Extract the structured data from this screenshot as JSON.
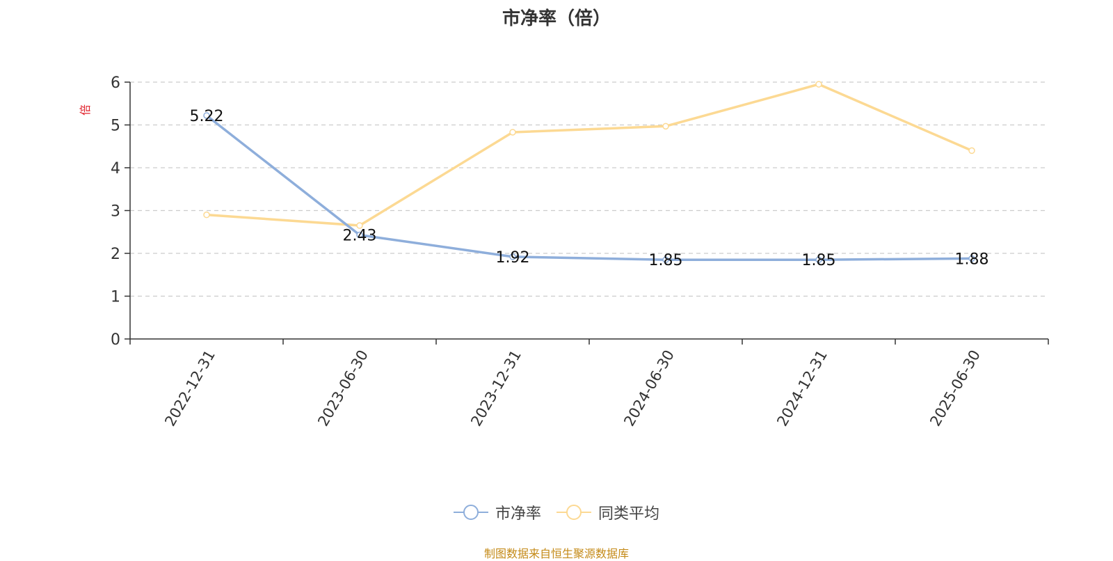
{
  "chart_data": {
    "type": "line",
    "title": "市净率（倍）",
    "ylabel": "倍",
    "xlabel": "",
    "x": [
      "2022-12-31",
      "2023-06-30",
      "2023-12-31",
      "2024-06-30",
      "2024-12-31",
      "2025-06-30"
    ],
    "ylim": [
      0,
      6
    ],
    "yticks": [
      0,
      1,
      2,
      3,
      4,
      5,
      6
    ],
    "grid": true,
    "legend_position": "bottom-center",
    "series": [
      {
        "name": "市净率",
        "values": [
          5.22,
          2.43,
          1.92,
          1.85,
          1.85,
          1.88
        ],
        "data_labels": [
          "5.22",
          "2.43",
          "1.92",
          "1.85",
          "1.85",
          "1.88"
        ],
        "color": "#8eaedb"
      },
      {
        "name": "同类平均",
        "values": [
          2.9,
          2.65,
          4.83,
          4.97,
          5.95,
          4.4
        ],
        "color": "#fcd993"
      }
    ],
    "source": "制图数据来自恒生聚源数据库",
    "colors": {
      "axis": "#333333",
      "grid": "#cccccc",
      "ylabel": "#e0202a",
      "source": "#c48a17"
    }
  }
}
